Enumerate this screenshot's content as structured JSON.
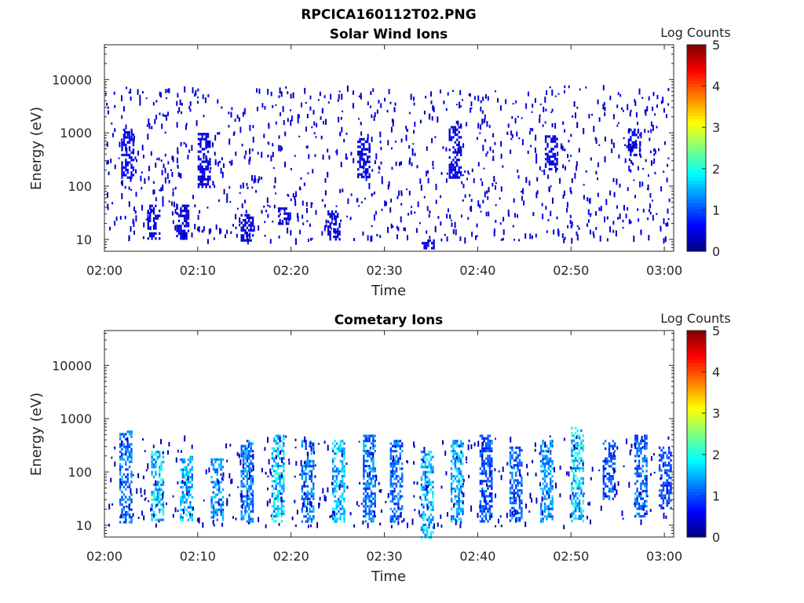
{
  "figure": {
    "suptitle": "RPCICA160112T02.PNG"
  },
  "colormap": [
    "#00007f",
    "#0000ff",
    "#007fff",
    "#00ffff",
    "#7fff7f",
    "#ffff00",
    "#ff7f00",
    "#ff0000",
    "#7f0000"
  ],
  "chart_data": [
    {
      "type": "heatmap",
      "title": "Solar Wind Ions",
      "xlabel": "Time",
      "ylabel": "Energy (eV)",
      "xlim": [
        "02:00",
        "03:01"
      ],
      "ylim": [
        6,
        45000
      ],
      "yscale": "log",
      "xticks": [
        "02:00",
        "02:10",
        "02:20",
        "02:30",
        "02:40",
        "02:50",
        "03:00"
      ],
      "yticks": [
        10,
        100,
        1000,
        10000
      ],
      "colorbar": {
        "label": "Log Counts",
        "range": [
          0,
          5
        ],
        "ticks": [
          0,
          1,
          2,
          3,
          4,
          5
        ]
      },
      "bursts": [
        {
          "t": 2.4,
          "e_lo": 150,
          "e_hi": 1200,
          "level": 0.7
        },
        {
          "t": 5.2,
          "e_lo": 10,
          "e_hi": 45,
          "level": 0.5
        },
        {
          "t": 8.3,
          "e_lo": 10,
          "e_hi": 45,
          "level": 0.5
        },
        {
          "t": 10.6,
          "e_lo": 100,
          "e_hi": 1000,
          "level": 0.5
        },
        {
          "t": 15.2,
          "e_lo": 10,
          "e_hi": 30,
          "level": 0.5
        },
        {
          "t": 19.2,
          "e_lo": 20,
          "e_hi": 40,
          "level": 0.5
        },
        {
          "t": 24.5,
          "e_lo": 10,
          "e_hi": 35,
          "level": 0.5
        },
        {
          "t": 27.7,
          "e_lo": 150,
          "e_hi": 800,
          "level": 0.6
        },
        {
          "t": 34.6,
          "e_lo": 7,
          "e_hi": 10,
          "level": 0.5
        },
        {
          "t": 37.5,
          "e_lo": 150,
          "e_hi": 1500,
          "level": 0.6
        },
        {
          "t": 47.8,
          "e_lo": 200,
          "e_hi": 900,
          "level": 0.6
        },
        {
          "t": 56.7,
          "e_lo": 400,
          "e_hi": 1200,
          "level": 0.6
        }
      ],
      "background_level": 0.4
    },
    {
      "type": "heatmap",
      "title": "Cometary Ions",
      "xlabel": "Time",
      "ylabel": "Energy (eV)",
      "xlim": [
        "02:00",
        "03:01"
      ],
      "ylim": [
        6,
        45000
      ],
      "yscale": "log",
      "xticks": [
        "02:00",
        "02:10",
        "02:20",
        "02:30",
        "02:40",
        "02:50",
        "03:00"
      ],
      "yticks": [
        10,
        100,
        1000,
        10000
      ],
      "colorbar": {
        "label": "Log Counts",
        "range": [
          0,
          5
        ],
        "ticks": [
          0,
          1,
          2,
          3,
          4,
          5
        ]
      },
      "bursts": [
        {
          "t": 2.2,
          "e_lo": 12,
          "e_hi": 600,
          "level": 1.4
        },
        {
          "t": 5.6,
          "e_lo": 12,
          "e_hi": 250,
          "level": 1.9
        },
        {
          "t": 8.7,
          "e_lo": 12,
          "e_hi": 200,
          "level": 1.8
        },
        {
          "t": 12.0,
          "e_lo": 12,
          "e_hi": 180,
          "level": 1.6
        },
        {
          "t": 15.2,
          "e_lo": 12,
          "e_hi": 400,
          "level": 1.5
        },
        {
          "t": 18.5,
          "e_lo": 12,
          "e_hi": 500,
          "level": 1.9
        },
        {
          "t": 21.7,
          "e_lo": 12,
          "e_hi": 400,
          "level": 1.4
        },
        {
          "t": 25.0,
          "e_lo": 12,
          "e_hi": 400,
          "level": 1.8
        },
        {
          "t": 28.3,
          "e_lo": 12,
          "e_hi": 500,
          "level": 1.4
        },
        {
          "t": 31.2,
          "e_lo": 12,
          "e_hi": 400,
          "level": 1.3
        },
        {
          "t": 34.5,
          "e_lo": 6,
          "e_hi": 250,
          "level": 1.7
        },
        {
          "t": 37.7,
          "e_lo": 12,
          "e_hi": 400,
          "level": 1.7
        },
        {
          "t": 40.8,
          "e_lo": 12,
          "e_hi": 500,
          "level": 1.2
        },
        {
          "t": 44.0,
          "e_lo": 12,
          "e_hi": 300,
          "level": 1.3
        },
        {
          "t": 47.3,
          "e_lo": 12,
          "e_hi": 400,
          "level": 1.6
        },
        {
          "t": 50.6,
          "e_lo": 12,
          "e_hi": 700,
          "level": 1.9
        },
        {
          "t": 54.0,
          "e_lo": 30,
          "e_hi": 400,
          "level": 1.2
        },
        {
          "t": 57.4,
          "e_lo": 15,
          "e_hi": 500,
          "level": 1.3
        },
        {
          "t": 60.0,
          "e_lo": 20,
          "e_hi": 300,
          "level": 1.1
        }
      ],
      "background_level": 0.3
    }
  ]
}
